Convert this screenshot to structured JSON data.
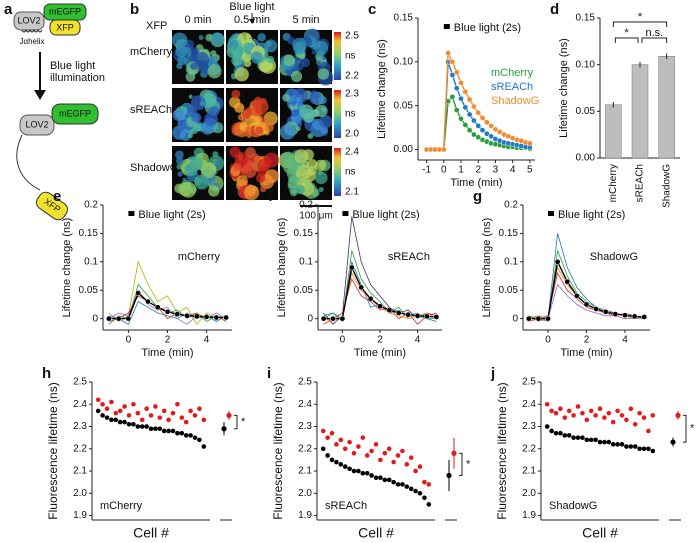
{
  "diagram": {
    "panel": "a",
    "lov2": "LOV2",
    "megfp": "mEGFP",
    "xfp": "XFP",
    "jhelix": "Jαhelix",
    "stimulus": [
      "Blue light",
      "illumination"
    ]
  },
  "images": {
    "panel": "b",
    "row_header": "XFP",
    "stimulus": "Blue light",
    "columns": [
      "0 min",
      "0.5 min",
      "5 min"
    ],
    "rows": [
      {
        "name": "mCherry",
        "top": "2.5",
        "unit": "ns",
        "bottom": "2.2"
      },
      {
        "name": "sREACh",
        "top": "2.3",
        "unit": "ns",
        "bottom": "2.0"
      },
      {
        "name": "ShadowG",
        "top": "2.4",
        "unit": "ns",
        "bottom": "2.1"
      }
    ],
    "scale_bar": "100 μm"
  },
  "chart_data": [
    {
      "panel": "c",
      "type": "line",
      "x_label": "Time (min)",
      "y_label": "Lifetime change (ns)",
      "stimulus": "Blue light (2s)",
      "legend": "right",
      "x": [
        -1,
        -0.75,
        -0.5,
        -0.25,
        0,
        0.25,
        0.5,
        0.75,
        1,
        1.25,
        1.5,
        1.75,
        2,
        2.25,
        2.5,
        2.75,
        3,
        3.25,
        3.5,
        3.75,
        4,
        4.25,
        4.5,
        4.75,
        5
      ],
      "series": [
        {
          "name": "mCherry",
          "color": "#2a9d3a",
          "marker": "circle",
          "values": [
            0,
            0,
            0,
            0,
            0,
            0.055,
            0.06,
            0.045,
            0.035,
            0.028,
            0.022,
            0.017,
            0.014,
            0.011,
            0.009,
            0.007,
            0.006,
            0.005,
            0.004,
            0.003,
            0.003,
            0.002,
            0.002,
            0.002,
            0.001
          ]
        },
        {
          "name": "sREACh",
          "color": "#1f78c8",
          "marker": "circle",
          "values": [
            0,
            0,
            0,
            0,
            0,
            0.1,
            0.085,
            0.07,
            0.058,
            0.048,
            0.04,
            0.033,
            0.027,
            0.022,
            0.018,
            0.015,
            0.012,
            0.01,
            0.008,
            0.007,
            0.006,
            0.005,
            0.004,
            0.003,
            0.003
          ]
        },
        {
          "name": "ShadowG",
          "color": "#f28a2e",
          "marker": "circle",
          "values": [
            0,
            0,
            0,
            0,
            0,
            0.11,
            0.1,
            0.088,
            0.076,
            0.066,
            0.057,
            0.049,
            0.042,
            0.036,
            0.031,
            0.027,
            0.023,
            0.02,
            0.017,
            0.015,
            0.013,
            0.011,
            0.01,
            0.008,
            0.007
          ]
        }
      ],
      "xlim": [
        -1.5,
        5.3
      ],
      "xticks": [
        -1,
        0,
        1,
        2,
        3,
        4,
        5
      ],
      "ylim": [
        -0.012,
        0.15
      ],
      "yticks": [
        {
          "value": 0,
          "label": "0.00"
        },
        0.05,
        {
          "value": 0.1,
          "label": "0.10"
        },
        0.15
      ]
    },
    {
      "panel": "d",
      "type": "bar",
      "y_label": "Lifetime change (ns)",
      "categories": [
        "mCherry",
        "sREACh",
        "ShadowG"
      ],
      "values": [
        0.057,
        0.1,
        0.109
      ],
      "errors": [
        0.003,
        0.003,
        0.003
      ],
      "color": "#bdbdbd",
      "significance": [
        {
          "pair": [
            "mCherry",
            "ShadowG"
          ],
          "label": "*"
        },
        {
          "pair": [
            "mCherry",
            "sREACh"
          ],
          "label": "*"
        },
        {
          "pair": [
            "sREACh",
            "ShadowG"
          ],
          "label": "n.s."
        }
      ],
      "ylim": [
        0,
        0.15
      ],
      "yticks": [
        {
          "value": 0,
          "label": "0.00"
        },
        0.05,
        {
          "value": 0.1,
          "label": "0.10"
        },
        0.15
      ]
    },
    {
      "panel": "e",
      "type": "line",
      "label": "mCherry",
      "stimulus": "Blue light (2s)",
      "x_label": "Time (min)",
      "y_label": "Lifetime change (ns)",
      "x": [
        -1,
        -0.5,
        0,
        0.5,
        1,
        1.5,
        2,
        2.5,
        3,
        3.5,
        4,
        4.5,
        5
      ],
      "series": [
        {
          "color": "#b5b000",
          "values": [
            0.01,
            -0.005,
            0.005,
            0.1,
            0.06,
            0.03,
            0.04,
            0.01,
            0.02,
            -0.01,
            0.01,
            0,
            0.005
          ]
        },
        {
          "color": "#2ca02c",
          "values": [
            -0.01,
            0.005,
            0,
            0.06,
            0.04,
            0.02,
            0.01,
            0.015,
            0,
            0.01,
            -0.005,
            0.005,
            0
          ]
        },
        {
          "color": "#1f77b4",
          "values": [
            0.005,
            0,
            -0.01,
            0.03,
            0.02,
            0.01,
            0.005,
            0,
            0.01,
            0,
            0.005,
            -0.005,
            0.005
          ]
        },
        {
          "color": "#9467bd",
          "values": [
            0,
            0.01,
            0.005,
            0.05,
            0.025,
            0.015,
            0.02,
            0,
            -0.01,
            0.005,
            0,
            0.01,
            0
          ]
        },
        {
          "color": "#d62728",
          "values": [
            -0.005,
            0,
            0.01,
            0.04,
            0.03,
            0.02,
            0,
            0.01,
            0.005,
            0.01,
            0,
            0.005,
            -0.005
          ]
        },
        {
          "color": "#000000",
          "marker": "circle",
          "values": [
            0,
            0,
            0,
            0.045,
            0.03,
            0.02,
            0.012,
            0.008,
            0.005,
            0.004,
            0.003,
            0.002,
            0.002
          ]
        }
      ],
      "xlim": [
        -1.3,
        5.3
      ],
      "xticks": [
        0,
        2,
        4
      ],
      "ylim": [
        -0.02,
        0.2
      ],
      "yticks": [
        0,
        0.05,
        0.1,
        0.15,
        0.2
      ]
    },
    {
      "panel": "f",
      "type": "line",
      "label": "sREACh",
      "stimulus": "Blue light (2s)",
      "x_label": "Time (min)",
      "y_label": "Lifetime change (ns)",
      "x": [
        -1,
        -0.5,
        0,
        0.5,
        1,
        1.5,
        2,
        2.5,
        3,
        3.5,
        4,
        4.5,
        5
      ],
      "series": [
        {
          "color": "#4b2c6f",
          "values": [
            0.01,
            -0.01,
            0.005,
            0.18,
            0.1,
            0.06,
            0.04,
            0.02,
            0.01,
            0.015,
            0,
            0.01,
            0.005
          ]
        },
        {
          "color": "#2ca02c",
          "values": [
            0,
            0.01,
            -0.005,
            0.12,
            0.07,
            0.045,
            0.03,
            0.01,
            0.02,
            0,
            0.005,
            0,
            0
          ]
        },
        {
          "color": "#d62728",
          "values": [
            -0.01,
            0,
            0.01,
            0.07,
            0.04,
            0.03,
            0.015,
            0.02,
            0,
            0.01,
            -0.01,
            0.005,
            0.01
          ]
        },
        {
          "color": "#1f77b4",
          "values": [
            0.005,
            0.01,
            0,
            0.1,
            0.06,
            0.02,
            0.025,
            0.01,
            0.015,
            0.005,
            0.01,
            0,
            -0.005
          ]
        },
        {
          "color": "#ff7f0e",
          "values": [
            0,
            -0.005,
            0.005,
            0.08,
            0.05,
            0.035,
            0.02,
            0.01,
            0.005,
            0,
            0.005,
            0.01,
            0
          ]
        },
        {
          "color": "#000000",
          "marker": "circle",
          "values": [
            0,
            0,
            0,
            0.09,
            0.055,
            0.035,
            0.022,
            0.015,
            0.01,
            0.007,
            0.005,
            0.004,
            0.003
          ]
        }
      ],
      "xlim": [
        -1.3,
        5.3
      ],
      "xticks": [
        0,
        2,
        4
      ],
      "ylim": [
        -0.02,
        0.2
      ],
      "yticks": [
        0,
        0.05,
        0.1,
        0.15,
        0.2
      ]
    },
    {
      "panel": "g",
      "type": "line",
      "label": "ShadowG",
      "stimulus": "Blue light (2s)",
      "x_label": "Time (min)",
      "y_label": "Lifetime change (ns)",
      "x": [
        -1,
        -0.5,
        0,
        0.5,
        1,
        1.5,
        2,
        2.5,
        3,
        3.5,
        4,
        4.5,
        5
      ],
      "series": [
        {
          "color": "#1f77b4",
          "values": [
            0,
            0.005,
            0,
            0.15,
            0.09,
            0.055,
            0.035,
            0.02,
            0.015,
            0.01,
            0.005,
            0.005,
            0
          ]
        },
        {
          "color": "#2ca02c",
          "values": [
            0.005,
            0,
            -0.005,
            0.12,
            0.075,
            0.045,
            0.03,
            0.02,
            0.01,
            0.01,
            0.005,
            0,
            0.005
          ]
        },
        {
          "color": "#d62728",
          "values": [
            -0.005,
            0,
            0.005,
            0.08,
            0.05,
            0.035,
            0.02,
            0.015,
            0.01,
            0.005,
            0.01,
            0.005,
            0
          ]
        },
        {
          "color": "#ff7f0e",
          "values": [
            0,
            0.005,
            0,
            0.09,
            0.06,
            0.04,
            0.025,
            0.015,
            0.012,
            0.008,
            0.005,
            0.003,
            0.002
          ]
        },
        {
          "color": "#9467bd",
          "values": [
            0.005,
            -0.005,
            0,
            0.06,
            0.04,
            0.025,
            0.015,
            0.01,
            0.005,
            0.005,
            0,
            0,
            0
          ]
        },
        {
          "color": "#000000",
          "marker": "circle",
          "values": [
            0,
            0,
            0,
            0.1,
            0.065,
            0.04,
            0.025,
            0.017,
            0.012,
            0.008,
            0.006,
            0.004,
            0.003
          ]
        }
      ],
      "xlim": [
        -1.3,
        5.3
      ],
      "xticks": [
        0,
        2,
        4
      ],
      "ylim": [
        -0.02,
        0.2
      ],
      "yticks": [
        0,
        0.05,
        0.1,
        0.15,
        0.2
      ]
    },
    {
      "panel": "h",
      "type": "scatter",
      "label": "mCherry",
      "x_label": "Cell #",
      "y_label": "Fluorescence lifetime (ns)",
      "series": [
        {
          "color": "#000000",
          "values": [
            2.37,
            2.35,
            2.34,
            2.33,
            2.33,
            2.32,
            2.32,
            2.31,
            2.31,
            2.3,
            2.3,
            2.3,
            2.29,
            2.29,
            2.29,
            2.28,
            2.28,
            2.28,
            2.27,
            2.27,
            2.26,
            2.26,
            2.25,
            2.24,
            2.21
          ]
        },
        {
          "color": "#e41a1c",
          "values": [
            2.42,
            2.4,
            2.38,
            2.41,
            2.36,
            2.37,
            2.39,
            2.35,
            2.4,
            2.36,
            2.33,
            2.38,
            2.35,
            2.39,
            2.34,
            2.37,
            2.33,
            2.36,
            2.4,
            2.34,
            2.32,
            2.37,
            2.35,
            2.38,
            2.33
          ]
        }
      ],
      "summary": [
        {
          "color": "#000000",
          "mean": 2.29,
          "sd": 0.03
        },
        {
          "color": "#e41a1c",
          "mean": 2.35,
          "sd": 0.02
        }
      ],
      "significance": "*",
      "ylim": [
        1.88,
        2.5
      ],
      "yticks": [
        1.9,
        {
          "value": 2,
          "label": "2.0"
        },
        2.1,
        2.2,
        2.3,
        2.4,
        2.5
      ]
    },
    {
      "panel": "i",
      "type": "scatter",
      "label": "sREACh",
      "x_label": "Cell #",
      "y_label": "Fluorescence lifetime (ns)",
      "series": [
        {
          "color": "#000000",
          "values": [
            2.2,
            2.17,
            2.15,
            2.14,
            2.13,
            2.12,
            2.11,
            2.1,
            2.1,
            2.09,
            2.09,
            2.08,
            2.07,
            2.07,
            2.06,
            2.06,
            2.05,
            2.04,
            2.04,
            2.03,
            2.02,
            2.01,
            2,
            1.98,
            1.95
          ]
        },
        {
          "color": "#e41a1c",
          "values": [
            2.28,
            2.25,
            2.27,
            2.22,
            2.24,
            2.2,
            2.23,
            2.18,
            2.21,
            2.25,
            2.17,
            2.19,
            2.22,
            2.15,
            2.18,
            2.2,
            2.14,
            2.17,
            2.19,
            2.13,
            2.16,
            2.1,
            2.12,
            2.05,
            2.04
          ]
        }
      ],
      "summary": [
        {
          "color": "#000000",
          "mean": 2.08,
          "sd": 0.07
        },
        {
          "color": "#e41a1c",
          "mean": 2.18,
          "sd": 0.07
        }
      ],
      "significance": "*",
      "ylim": [
        1.88,
        2.5
      ],
      "yticks": [
        1.9,
        {
          "value": 2,
          "label": "2.0"
        },
        2.1,
        2.2,
        2.3,
        2.4,
        2.5
      ]
    },
    {
      "panel": "j",
      "type": "scatter",
      "label": "ShadowG",
      "x_label": "Cell #",
      "y_label": "Fluorescence lifetime (ns)",
      "series": [
        {
          "color": "#000000",
          "values": [
            2.3,
            2.28,
            2.27,
            2.27,
            2.26,
            2.26,
            2.25,
            2.25,
            2.25,
            2.24,
            2.24,
            2.24,
            2.23,
            2.23,
            2.23,
            2.22,
            2.22,
            2.22,
            2.21,
            2.21,
            2.21,
            2.2,
            2.2,
            2.2,
            2.19
          ]
        },
        {
          "color": "#e41a1c",
          "values": [
            2.4,
            2.37,
            2.36,
            2.38,
            2.34,
            2.37,
            2.35,
            2.39,
            2.36,
            2.33,
            2.37,
            2.35,
            2.38,
            2.34,
            2.36,
            2.32,
            2.37,
            2.35,
            2.33,
            2.38,
            2.31,
            2.36,
            2.34,
            2.28,
            2.35
          ]
        }
      ],
      "summary": [
        {
          "color": "#000000",
          "mean": 2.23,
          "sd": 0.02
        },
        {
          "color": "#e41a1c",
          "mean": 2.35,
          "sd": 0.02
        }
      ],
      "significance": "*",
      "ylim": [
        1.88,
        2.5
      ],
      "yticks": [
        1.9,
        {
          "value": 2,
          "label": "2.0"
        },
        2.1,
        2.2,
        2.3,
        2.4,
        2.5
      ]
    }
  ]
}
